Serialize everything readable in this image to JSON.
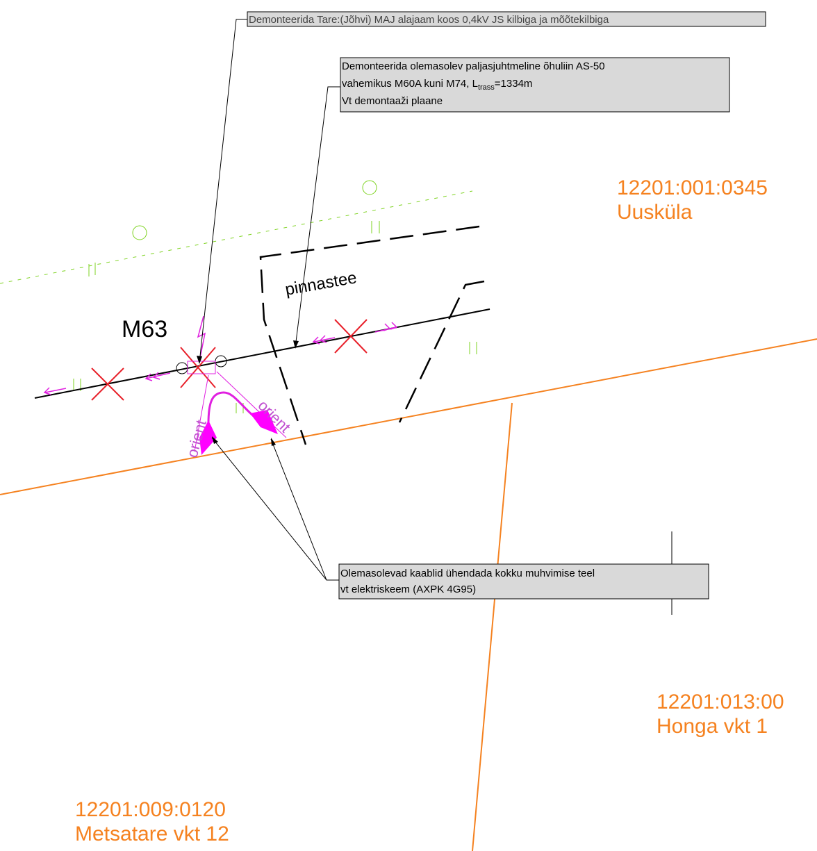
{
  "notes": [
    {
      "text": "Demonteerida Tare:(Jõhvi) MAJ alajaam koos 0,4kV JS kilbiga ja mõõtekilbiga"
    },
    {
      "line1": "Demonteerida olemasolev paljasjuhtmeline õhuliin AS-50",
      "line2": [
        "vahemikus M60A kuni M74, L",
        "trass",
        "=1334m"
      ],
      "line3": "Vt demontaaži plaane"
    },
    {
      "line1": "Olemasolevad kaablid ühendada kokku muhvimise teel",
      "line2": "vt elektriskeem (AXPK 4G95)"
    }
  ],
  "parcels": [
    {
      "id": "12201:001:0345",
      "name": "Uusküla"
    },
    {
      "id": "12201:013:00",
      "name": "Honga vkt 1"
    },
    {
      "id": "12201:009:0120",
      "name": "Metsatare vkt 12"
    }
  ],
  "labels": {
    "road": "pinnastee",
    "pole": "M63",
    "orient_left": "orient",
    "orient_right": "orient"
  }
}
